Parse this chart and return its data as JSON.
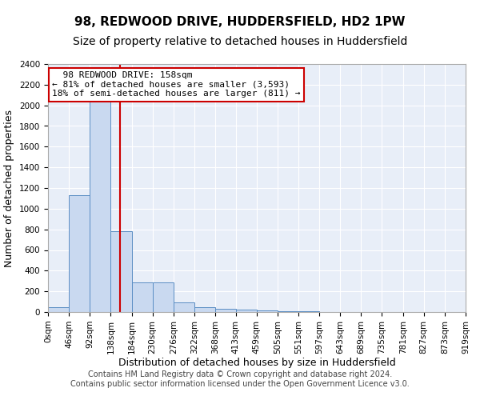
{
  "title": "98, REDWOOD DRIVE, HUDDERSFIELD, HD2 1PW",
  "subtitle": "Size of property relative to detached houses in Huddersfield",
  "xlabel": "Distribution of detached houses by size in Huddersfield",
  "ylabel": "Number of detached properties",
  "property_size": 158,
  "property_label": "98 REDWOOD DRIVE: 158sqm",
  "pct_smaller": "81% of detached houses are smaller (3,593)",
  "pct_larger": "18% of semi-detached houses are larger (811)",
  "bar_left_edges": [
    0,
    46,
    92,
    138,
    184,
    230,
    276,
    322,
    368,
    413,
    459,
    505,
    551,
    597,
    643,
    689,
    735,
    781,
    827,
    873
  ],
  "bar_heights": [
    50,
    1130,
    2160,
    780,
    290,
    290,
    95,
    50,
    30,
    20,
    15,
    10,
    5,
    3,
    2,
    2,
    1,
    1,
    1,
    1
  ],
  "bin_width": 46,
  "tick_labels": [
    "0sqm",
    "46sqm",
    "92sqm",
    "138sqm",
    "184sqm",
    "230sqm",
    "276sqm",
    "322sqm",
    "368sqm",
    "413sqm",
    "459sqm",
    "505sqm",
    "551sqm",
    "597sqm",
    "643sqm",
    "689sqm",
    "735sqm",
    "781sqm",
    "827sqm",
    "873sqm",
    "919sqm"
  ],
  "tick_positions": [
    0,
    46,
    92,
    138,
    184,
    230,
    276,
    322,
    368,
    413,
    459,
    505,
    551,
    597,
    643,
    689,
    735,
    781,
    827,
    873,
    919
  ],
  "bar_color": "#c9d9f0",
  "bar_edge_color": "#5b8ec4",
  "marker_color": "#cc0000",
  "ylim": [
    0,
    2400
  ],
  "xlim": [
    0,
    919
  ],
  "yticks": [
    0,
    200,
    400,
    600,
    800,
    1000,
    1200,
    1400,
    1600,
    1800,
    2000,
    2200,
    2400
  ],
  "background_color": "#e8eef8",
  "grid_color": "#ffffff",
  "annotation_box_color": "#cc0000",
  "footer_text": "Contains HM Land Registry data © Crown copyright and database right 2024.\nContains public sector information licensed under the Open Government Licence v3.0.",
  "title_fontsize": 11,
  "subtitle_fontsize": 10,
  "axis_fontsize": 9,
  "tick_fontsize": 7.5,
  "footer_fontsize": 7
}
